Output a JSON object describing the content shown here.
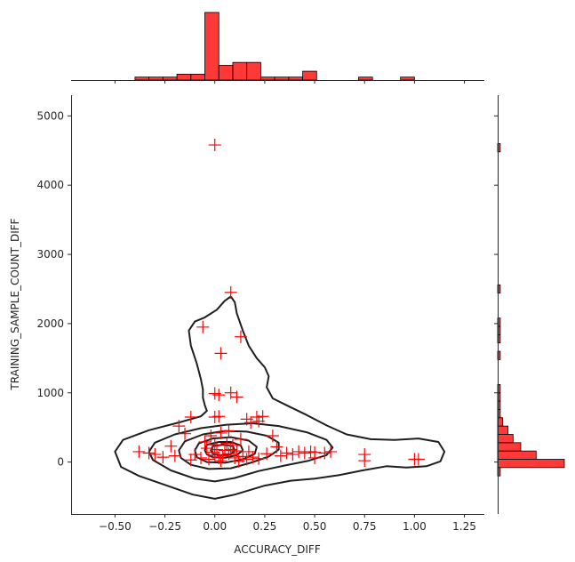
{
  "chart_data": {
    "type": "scatter",
    "kind": "jointplot with KDE contours and marginal histograms",
    "title": "",
    "xlabel": "ACCURACY_DIFF",
    "ylabel": "TRAINING_SAMPLE_COUNT_DIFF",
    "xlim": [
      -0.72,
      1.35
    ],
    "ylim": [
      -750,
      5300
    ],
    "xticks": [
      -0.5,
      -0.25,
      0.0,
      0.25,
      0.5,
      0.75,
      1.0,
      1.25
    ],
    "xtick_labels": [
      "−0.50",
      "−0.25",
      "0.00",
      "0.25",
      "0.50",
      "0.75",
      "1.00",
      "1.25"
    ],
    "yticks": [
      0,
      1000,
      2000,
      3000,
      4000,
      5000
    ],
    "ytick_labels": [
      "0",
      "1000",
      "2000",
      "3000",
      "4000",
      "5000"
    ],
    "grid": false,
    "marker": "+",
    "color": "#ff0000",
    "hist_edge_color": "#000000",
    "points": [
      {
        "x": 0.0,
        "y": 4580
      },
      {
        "x": 0.08,
        "y": 2450
      },
      {
        "x": -0.06,
        "y": 1950
      },
      {
        "x": 0.13,
        "y": 1810
      },
      {
        "x": 0.03,
        "y": 1570
      },
      {
        "x": 0.0,
        "y": 990
      },
      {
        "x": 0.02,
        "y": 970
      },
      {
        "x": 0.08,
        "y": 1000
      },
      {
        "x": 0.11,
        "y": 940
      },
      {
        "x": -0.12,
        "y": 650
      },
      {
        "x": 0.0,
        "y": 650
      },
      {
        "x": 0.02,
        "y": 660
      },
      {
        "x": 0.21,
        "y": 650
      },
      {
        "x": 0.24,
        "y": 660
      },
      {
        "x": 0.22,
        "y": 590
      },
      {
        "x": 0.16,
        "y": 620
      },
      {
        "x": 0.18,
        "y": 570
      },
      {
        "x": -0.18,
        "y": 520
      },
      {
        "x": -0.15,
        "y": 410
      },
      {
        "x": 0.29,
        "y": 380
      },
      {
        "x": 0.07,
        "y": 450
      },
      {
        "x": 0.03,
        "y": 420
      },
      {
        "x": -0.02,
        "y": 380
      },
      {
        "x": 0.13,
        "y": 330
      },
      {
        "x": -0.05,
        "y": 290
      },
      {
        "x": 0.06,
        "y": 270
      },
      {
        "x": 0.0,
        "y": 250
      },
      {
        "x": 0.09,
        "y": 240
      },
      {
        "x": -0.22,
        "y": 230
      },
      {
        "x": 0.31,
        "y": 220
      },
      {
        "x": -0.04,
        "y": 200
      },
      {
        "x": 0.01,
        "y": 180
      },
      {
        "x": 0.05,
        "y": 170
      },
      {
        "x": 0.11,
        "y": 160
      },
      {
        "x": 0.17,
        "y": 150
      },
      {
        "x": -0.38,
        "y": 150
      },
      {
        "x": -0.33,
        "y": 130
      },
      {
        "x": -0.3,
        "y": 110
      },
      {
        "x": -0.26,
        "y": 70
      },
      {
        "x": -0.2,
        "y": 90
      },
      {
        "x": -0.1,
        "y": 110
      },
      {
        "x": -0.07,
        "y": 60
      },
      {
        "x": -0.03,
        "y": 40
      },
      {
        "x": 0.0,
        "y": 100
      },
      {
        "x": 0.02,
        "y": 60
      },
      {
        "x": 0.04,
        "y": 90
      },
      {
        "x": 0.07,
        "y": 120
      },
      {
        "x": 0.1,
        "y": 60
      },
      {
        "x": 0.14,
        "y": 80
      },
      {
        "x": 0.16,
        "y": 40
      },
      {
        "x": 0.19,
        "y": 70
      },
      {
        "x": 0.22,
        "y": 50
      },
      {
        "x": 0.26,
        "y": 120
      },
      {
        "x": 0.33,
        "y": 90
      },
      {
        "x": 0.36,
        "y": 130
      },
      {
        "x": 0.39,
        "y": 110
      },
      {
        "x": 0.42,
        "y": 150
      },
      {
        "x": 0.45,
        "y": 130
      },
      {
        "x": 0.48,
        "y": 150
      },
      {
        "x": 0.5,
        "y": 140
      },
      {
        "x": 0.5,
        "y": 60
      },
      {
        "x": 0.55,
        "y": 130
      },
      {
        "x": 0.58,
        "y": 150
      },
      {
        "x": 0.75,
        "y": 110
      },
      {
        "x": 0.75,
        "y": 20
      },
      {
        "x": 1.0,
        "y": 40
      },
      {
        "x": 1.02,
        "y": 40
      },
      {
        "x": -0.12,
        "y": 30
      },
      {
        "x": 0.03,
        "y": 20
      },
      {
        "x": 0.12,
        "y": 10
      },
      {
        "x": -0.01,
        "y": 140
      },
      {
        "x": 0.08,
        "y": 180
      }
    ],
    "kde_contours": [
      [
        [
          -0.5,
          150
        ],
        [
          -0.46,
          320
        ],
        [
          -0.33,
          460
        ],
        [
          -0.17,
          580
        ],
        [
          -0.07,
          660
        ],
        [
          -0.04,
          740
        ],
        [
          -0.05,
          820
        ],
        [
          -0.06,
          930
        ],
        [
          -0.06,
          1050
        ],
        [
          -0.07,
          1200
        ],
        [
          -0.09,
          1420
        ],
        [
          -0.12,
          1680
        ],
        [
          -0.13,
          1900
        ],
        [
          -0.1,
          2030
        ],
        [
          -0.05,
          2090
        ],
        [
          0.01,
          2200
        ],
        [
          0.05,
          2330
        ],
        [
          0.08,
          2390
        ],
        [
          0.1,
          2310
        ],
        [
          0.11,
          2150
        ],
        [
          0.14,
          1900
        ],
        [
          0.17,
          1680
        ],
        [
          0.21,
          1500
        ],
        [
          0.25,
          1370
        ],
        [
          0.27,
          1240
        ],
        [
          0.26,
          1080
        ],
        [
          0.29,
          920
        ],
        [
          0.36,
          820
        ],
        [
          0.46,
          680
        ],
        [
          0.56,
          530
        ],
        [
          0.66,
          400
        ],
        [
          0.78,
          330
        ],
        [
          0.9,
          320
        ],
        [
          1.02,
          340
        ],
        [
          1.12,
          290
        ],
        [
          1.15,
          150
        ],
        [
          1.13,
          10
        ],
        [
          1.06,
          -60
        ],
        [
          0.96,
          -80
        ],
        [
          0.86,
          -60
        ],
        [
          0.74,
          -120
        ],
        [
          0.62,
          -190
        ],
        [
          0.5,
          -240
        ],
        [
          0.38,
          -270
        ],
        [
          0.25,
          -340
        ],
        [
          0.1,
          -470
        ],
        [
          0.0,
          -530
        ],
        [
          -0.11,
          -470
        ],
        [
          -0.24,
          -340
        ],
        [
          -0.38,
          -200
        ],
        [
          -0.47,
          -70
        ],
        [
          -0.5,
          150
        ]
      ],
      [
        [
          -0.33,
          150
        ],
        [
          -0.3,
          280
        ],
        [
          -0.2,
          400
        ],
        [
          -0.07,
          490
        ],
        [
          0.06,
          540
        ],
        [
          0.19,
          560
        ],
        [
          0.32,
          520
        ],
        [
          0.46,
          430
        ],
        [
          0.56,
          320
        ],
        [
          0.59,
          210
        ],
        [
          0.56,
          100
        ],
        [
          0.47,
          20
        ],
        [
          0.35,
          -50
        ],
        [
          0.22,
          -130
        ],
        [
          0.1,
          -230
        ],
        [
          0.0,
          -280
        ],
        [
          -0.1,
          -240
        ],
        [
          -0.22,
          -120
        ],
        [
          -0.31,
          30
        ],
        [
          -0.33,
          150
        ]
      ],
      [
        [
          -0.18,
          170
        ],
        [
          -0.15,
          300
        ],
        [
          -0.06,
          400
        ],
        [
          0.05,
          450
        ],
        [
          0.16,
          440
        ],
        [
          0.26,
          380
        ],
        [
          0.32,
          280
        ],
        [
          0.32,
          180
        ],
        [
          0.27,
          80
        ],
        [
          0.18,
          -10
        ],
        [
          0.08,
          -90
        ],
        [
          -0.03,
          -100
        ],
        [
          -0.12,
          -40
        ],
        [
          -0.17,
          60
        ],
        [
          -0.18,
          170
        ]
      ],
      [
        [
          -0.1,
          170
        ],
        [
          -0.08,
          270
        ],
        [
          -0.01,
          340
        ],
        [
          0.08,
          360
        ],
        [
          0.17,
          310
        ],
        [
          0.21,
          220
        ],
        [
          0.2,
          120
        ],
        [
          0.14,
          40
        ],
        [
          0.05,
          -10
        ],
        [
          -0.04,
          0
        ],
        [
          -0.09,
          70
        ],
        [
          -0.1,
          170
        ]
      ],
      [
        [
          -0.05,
          170
        ],
        [
          -0.04,
          250
        ],
        [
          0.02,
          290
        ],
        [
          0.08,
          290
        ],
        [
          0.13,
          240
        ],
        [
          0.14,
          170
        ],
        [
          0.11,
          100
        ],
        [
          0.05,
          60
        ],
        [
          -0.01,
          70
        ],
        [
          -0.04,
          110
        ],
        [
          -0.05,
          170
        ]
      ],
      [
        [
          -0.02,
          170
        ],
        [
          -0.01,
          230
        ],
        [
          0.04,
          250
        ],
        [
          0.09,
          230
        ],
        [
          0.1,
          170
        ],
        [
          0.08,
          110
        ],
        [
          0.03,
          100
        ],
        [
          -0.01,
          120
        ],
        [
          -0.02,
          170
        ]
      ]
    ],
    "marginal_x_hist": {
      "bin_edges": [
        -0.4,
        -0.33,
        -0.26,
        -0.19,
        -0.12,
        -0.05,
        0.02,
        0.09,
        0.16,
        0.23,
        0.3,
        0.37,
        0.44,
        0.51,
        0.58,
        0.65,
        0.72,
        0.79,
        0.86,
        0.93,
        1.0,
        1.07
      ],
      "counts": [
        1,
        1,
        1,
        2,
        2,
        23,
        5,
        6,
        6,
        1,
        1,
        1,
        3,
        0,
        0,
        0,
        1,
        0,
        0,
        1,
        0
      ]
    },
    "marginal_y_hist": {
      "bin_edges": [
        -200,
        -80,
        40,
        160,
        280,
        400,
        520,
        640,
        760,
        880,
        1000,
        1120,
        1240,
        1360,
        1480,
        1600,
        1720,
        1840,
        1960,
        2080,
        2200,
        2320,
        2440,
        2560,
        2680,
        2800,
        2920,
        3040,
        3160,
        3280,
        3400,
        3520,
        3640,
        3760,
        3880,
        4000,
        4120,
        4240,
        4360,
        4480,
        4600
      ],
      "counts": [
        1,
        26,
        15,
        9,
        6,
        4,
        2,
        1,
        1,
        1,
        1,
        0,
        0,
        0,
        1,
        0,
        1,
        1,
        1,
        0,
        0,
        0,
        1,
        0,
        0,
        0,
        0,
        0,
        0,
        0,
        0,
        0,
        0,
        0,
        0,
        0,
        0,
        0,
        0,
        1
      ]
    }
  }
}
